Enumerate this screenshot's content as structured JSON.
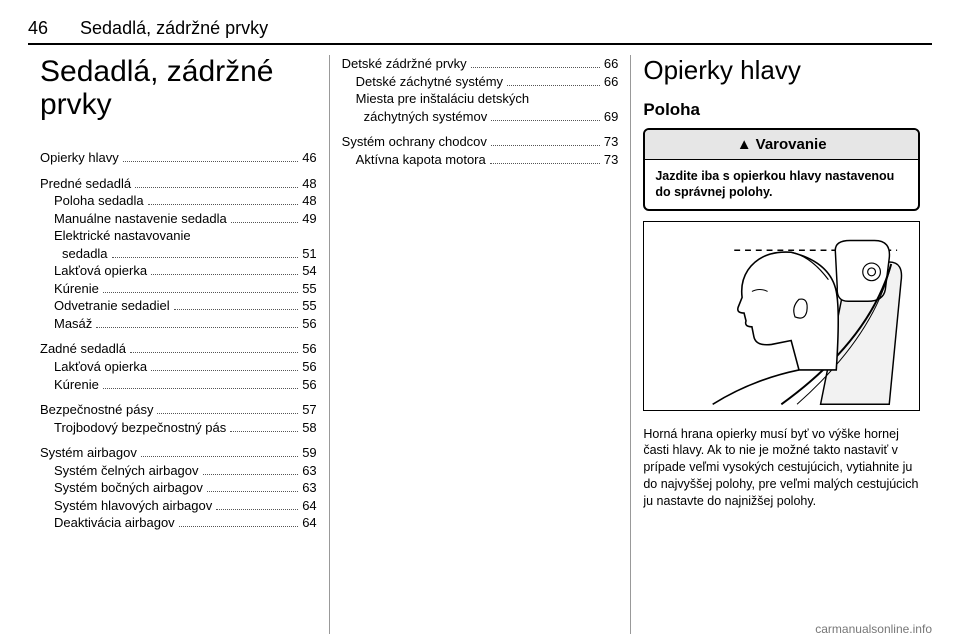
{
  "header": {
    "page_number": "46",
    "running_title": "Sedadlá, zádržné prvky"
  },
  "col1": {
    "chapter_title": "Sedadlá, zádržné prvky",
    "toc": [
      {
        "group": [
          {
            "label": "Opierky hlavy",
            "page": "46"
          }
        ]
      },
      {
        "group": [
          {
            "label": "Predné sedadlá",
            "page": "48"
          },
          {
            "label": "Poloha sedadla",
            "page": "48",
            "sub": true
          },
          {
            "label": "Manuálne nastavenie sedadla",
            "page": "49",
            "sub": true
          },
          {
            "label": "Elektrické nastavovanie",
            "sub": true,
            "cont": true
          },
          {
            "label": "sedadla",
            "page": "51",
            "sub2": true
          },
          {
            "label": "Lakťová opierka",
            "page": "54",
            "sub": true
          },
          {
            "label": "Kúrenie",
            "page": "55",
            "sub": true
          },
          {
            "label": "Odvetranie sedadiel",
            "page": "55",
            "sub": true
          },
          {
            "label": "Masáž",
            "page": "56",
            "sub": true
          }
        ]
      },
      {
        "group": [
          {
            "label": "Zadné sedadlá",
            "page": "56"
          },
          {
            "label": "Lakťová opierka",
            "page": "56",
            "sub": true
          },
          {
            "label": "Kúrenie",
            "page": "56",
            "sub": true
          }
        ]
      },
      {
        "group": [
          {
            "label": "Bezpečnostné pásy",
            "page": "57"
          },
          {
            "label": "Trojbodový bezpečnostný pás",
            "page": "58",
            "sub": true
          }
        ]
      },
      {
        "group": [
          {
            "label": "Systém airbagov",
            "page": "59"
          },
          {
            "label": "Systém čelných airbagov",
            "page": "63",
            "sub": true
          },
          {
            "label": "Systém bočných airbagov",
            "page": "63",
            "sub": true
          },
          {
            "label": "Systém hlavových airbagov",
            "page": "64",
            "sub": true
          },
          {
            "label": "Deaktivácia airbagov",
            "page": "64",
            "sub": true
          }
        ]
      }
    ]
  },
  "col2": {
    "toc": [
      {
        "group": [
          {
            "label": "Detské zádržné prvky",
            "page": "66"
          },
          {
            "label": "Detské záchytné systémy",
            "page": "66",
            "sub": true
          },
          {
            "label": "Miesta pre inštaláciu detských",
            "sub": true,
            "cont": true
          },
          {
            "label": "záchytných systémov",
            "page": "69",
            "sub2": true
          }
        ]
      },
      {
        "group": [
          {
            "label": "Systém ochrany chodcov",
            "page": "73"
          },
          {
            "label": "Aktívna kapota motora",
            "page": "73",
            "sub": true
          }
        ]
      }
    ]
  },
  "col3": {
    "section_title": "Opierky hlavy",
    "subsection_title": "Poloha",
    "warning": {
      "head": "Varovanie",
      "icon": "▲",
      "body": "Jazdite iba s opierkou hlavy nastavenou do správnej polohy."
    },
    "body_text": "Horná hrana opierky musí byť vo výške hornej časti hlavy. Ak to nie je možné takto nastaviť v prípade veľmi vysokých cestujúcich, vytiahnite ju do najvyššej polohy, pre veľmi malých cestujúcich ju nastavte do najnižšej polohy."
  },
  "footer": {
    "site": "carmanualsonline.info"
  },
  "colors": {
    "text": "#000000",
    "rule": "#000000",
    "col_divider": "#999999",
    "warning_bg": "#e6e6e6",
    "footer": "#777777"
  }
}
